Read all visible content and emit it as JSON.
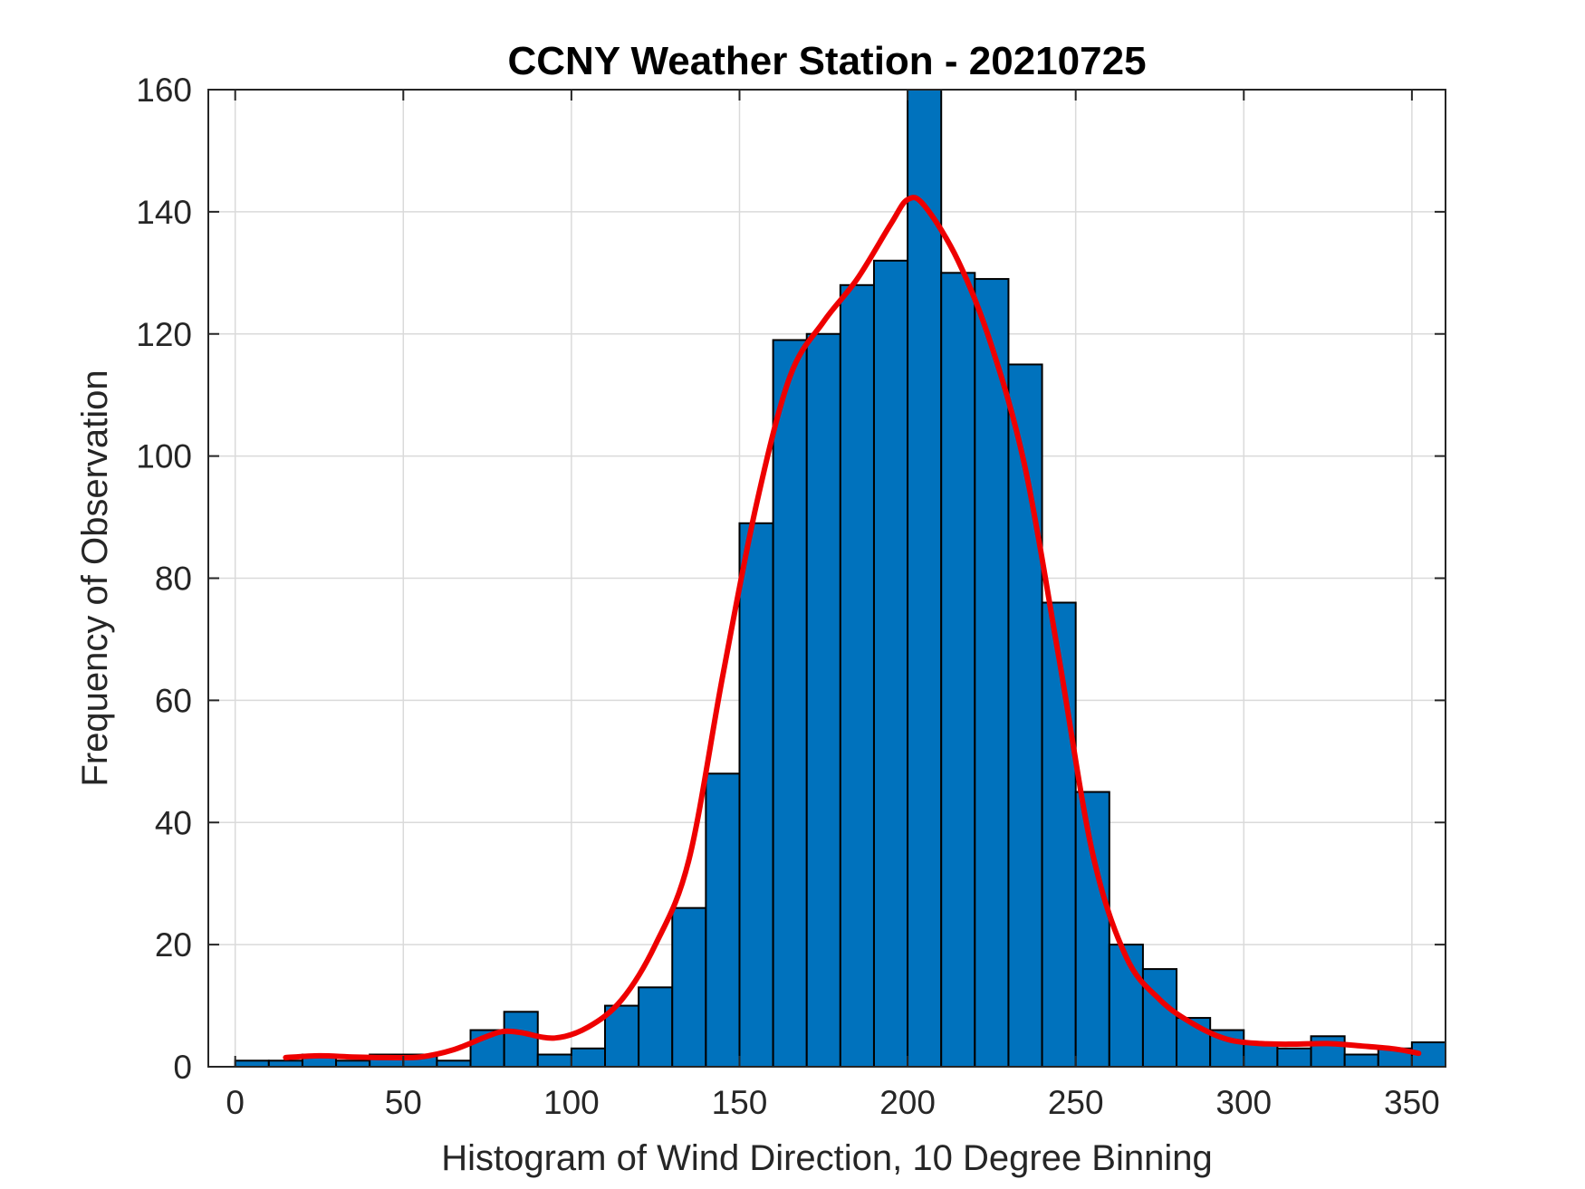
{
  "chart_data": {
    "type": "bar",
    "title": "CCNY Weather Station - 20210725",
    "xlabel": "Histogram of Wind Direction, 10 Degree Binning",
    "ylabel": "Frequency of Observation",
    "xlim": [
      -8,
      360
    ],
    "ylim": [
      0,
      160
    ],
    "xticks": [
      0,
      50,
      100,
      150,
      200,
      250,
      300,
      350
    ],
    "yticks": [
      0,
      20,
      40,
      60,
      80,
      100,
      120,
      140,
      160
    ],
    "grid": true,
    "bin_width": 10,
    "bins": [
      {
        "start": 0,
        "count": 1
      },
      {
        "start": 10,
        "count": 1
      },
      {
        "start": 20,
        "count": 2
      },
      {
        "start": 30,
        "count": 1
      },
      {
        "start": 40,
        "count": 2
      },
      {
        "start": 50,
        "count": 2
      },
      {
        "start": 60,
        "count": 1
      },
      {
        "start": 70,
        "count": 6
      },
      {
        "start": 80,
        "count": 9
      },
      {
        "start": 90,
        "count": 2
      },
      {
        "start": 100,
        "count": 3
      },
      {
        "start": 110,
        "count": 10
      },
      {
        "start": 120,
        "count": 13
      },
      {
        "start": 130,
        "count": 26
      },
      {
        "start": 140,
        "count": 48
      },
      {
        "start": 150,
        "count": 89
      },
      {
        "start": 160,
        "count": 119
      },
      {
        "start": 170,
        "count": 120
      },
      {
        "start": 180,
        "count": 128
      },
      {
        "start": 190,
        "count": 132
      },
      {
        "start": 200,
        "count": 160
      },
      {
        "start": 210,
        "count": 130
      },
      {
        "start": 220,
        "count": 129
      },
      {
        "start": 230,
        "count": 115
      },
      {
        "start": 240,
        "count": 76
      },
      {
        "start": 250,
        "count": 45
      },
      {
        "start": 260,
        "count": 20
      },
      {
        "start": 270,
        "count": 16
      },
      {
        "start": 280,
        "count": 8
      },
      {
        "start": 290,
        "count": 6
      },
      {
        "start": 300,
        "count": 4
      },
      {
        "start": 310,
        "count": 3
      },
      {
        "start": 320,
        "count": 5
      },
      {
        "start": 330,
        "count": 2
      },
      {
        "start": 340,
        "count": 3
      },
      {
        "start": 350,
        "count": 4
      }
    ],
    "fit_curve": {
      "color": "#ee0000",
      "points": [
        [
          15,
          1.5
        ],
        [
          25,
          1.8
        ],
        [
          35,
          1.6
        ],
        [
          45,
          1.5
        ],
        [
          55,
          1.6
        ],
        [
          65,
          2.8
        ],
        [
          75,
          5.0
        ],
        [
          80,
          5.8
        ],
        [
          85,
          5.6
        ],
        [
          95,
          4.7
        ],
        [
          105,
          6.5
        ],
        [
          115,
          11
        ],
        [
          125,
          20
        ],
        [
          135,
          34
        ],
        [
          145,
          64
        ],
        [
          155,
          92
        ],
        [
          165,
          113
        ],
        [
          175,
          122
        ],
        [
          185,
          129
        ],
        [
          195,
          138
        ],
        [
          200,
          142
        ],
        [
          205,
          141
        ],
        [
          215,
          132
        ],
        [
          225,
          118
        ],
        [
          235,
          98
        ],
        [
          245,
          67
        ],
        [
          255,
          35
        ],
        [
          265,
          18
        ],
        [
          275,
          11
        ],
        [
          285,
          7
        ],
        [
          295,
          4.5
        ],
        [
          305,
          3.8
        ],
        [
          315,
          3.7
        ],
        [
          325,
          3.8
        ],
        [
          335,
          3.4
        ],
        [
          345,
          2.9
        ],
        [
          352,
          2.2
        ]
      ]
    },
    "colors": {
      "bar_fill": "#0072bd",
      "bar_edge": "#000000",
      "grid": "#dadada",
      "axes": "#262626"
    }
  }
}
